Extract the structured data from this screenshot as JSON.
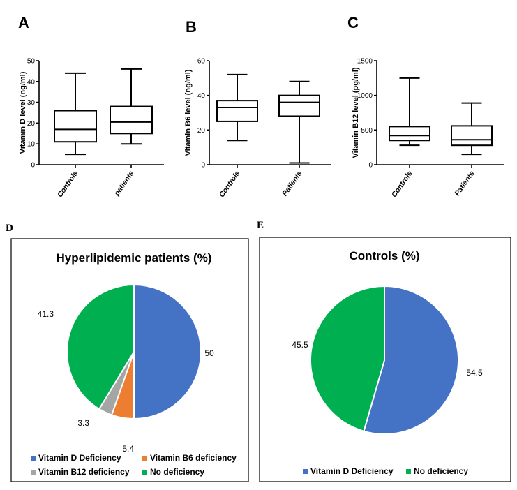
{
  "panels": {
    "A": "A",
    "B": "B",
    "C": "C",
    "D": "D",
    "E": "E"
  },
  "chart_data": [
    {
      "type": "box",
      "panel": "A",
      "ylabel": "Vitamin  D level (ng/ml)",
      "ylim": [
        0,
        50
      ],
      "yticks": [
        0,
        10,
        20,
        30,
        40,
        50
      ],
      "categories": [
        "Controls",
        "patients"
      ],
      "boxes": [
        {
          "min": 5,
          "q1": 11,
          "median": 17,
          "q3": 26,
          "max": 44
        },
        {
          "min": 10,
          "q1": 15,
          "median": 20.5,
          "q3": 28,
          "max": 46
        }
      ]
    },
    {
      "type": "box",
      "panel": "B",
      "ylabel": "Vitamin B6 level (ng/ml)",
      "ylim": [
        0,
        60
      ],
      "yticks": [
        0,
        20,
        40,
        60
      ],
      "categories": [
        "Controls",
        "Patients"
      ],
      "boxes": [
        {
          "min": 14,
          "q1": 25,
          "median": 33,
          "q3": 37,
          "max": 52
        },
        {
          "min": 1,
          "q1": 28,
          "median": 36,
          "q3": 40,
          "max": 48
        }
      ]
    },
    {
      "type": "box",
      "panel": "C",
      "ylabel": "Vitamin B12 level (pg/ml)",
      "ylim": [
        0,
        1500
      ],
      "yticks": [
        0,
        500,
        1000,
        1500
      ],
      "categories": [
        "Controls",
        "Patients"
      ],
      "boxes": [
        {
          "min": 280,
          "q1": 350,
          "median": 420,
          "q3": 550,
          "max": 1250
        },
        {
          "min": 150,
          "q1": 280,
          "median": 360,
          "q3": 560,
          "max": 890
        }
      ]
    },
    {
      "type": "pie",
      "panel": "D",
      "title": "Hyperlipidemic patients (%)",
      "slices": [
        {
          "label": "Vitamin D Deficiency",
          "value": 50,
          "display": "50",
          "color": "#4472C4"
        },
        {
          "label": "Vitamin B6 deficiency",
          "value": 5.4,
          "display": "5.4",
          "color": "#ED7D31"
        },
        {
          "label": "Vitamin B12 deficiency",
          "value": 3.3,
          "display": "3.3",
          "color": "#A5A5A5"
        },
        {
          "label": "No deficiency",
          "value": 41.3,
          "display": "41.3",
          "color": "#00B050"
        }
      ]
    },
    {
      "type": "pie",
      "panel": "E",
      "title": "Controls (%)",
      "slices": [
        {
          "label": "Vitamin D Deficiency",
          "value": 54.5,
          "display": "54.5",
          "color": "#4472C4"
        },
        {
          "label": "No deficiency",
          "value": 45.5,
          "display": "45.5",
          "color": "#00B050"
        }
      ]
    }
  ]
}
